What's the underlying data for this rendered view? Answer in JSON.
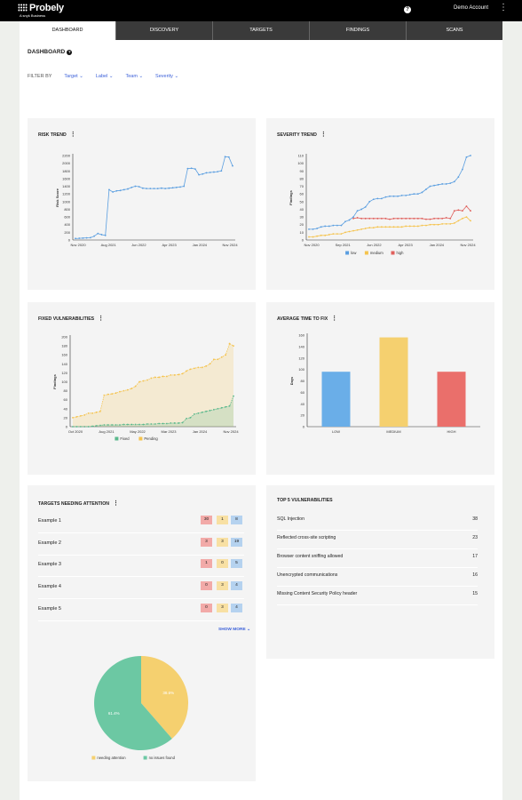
{
  "header": {
    "brand": "Probely",
    "brand_sub": "A snyk Business",
    "help": "?",
    "account": "Demo Account",
    "menu": "⋮",
    "tabs": [
      {
        "label": "DASHBOARD",
        "active": true
      },
      {
        "label": "DISCOVERY",
        "active": false
      },
      {
        "label": "TARGETS",
        "active": false
      },
      {
        "label": "FINDINGS",
        "active": false
      },
      {
        "label": "SCANS",
        "active": false
      }
    ]
  },
  "page": {
    "title": "DASHBOARD",
    "filter_label": "FILTER BY",
    "filters": [
      "Target",
      "Label",
      "Team",
      "Severity"
    ]
  },
  "risk_trend": {
    "title": "RISK TREND",
    "chart_data": {
      "type": "line",
      "ylabel": "Risk Score",
      "ylim": [
        0,
        2200
      ],
      "yticks": [
        0,
        200,
        400,
        600,
        800,
        1000,
        1200,
        1400,
        1600,
        1800,
        2000,
        2200
      ],
      "xticks": [
        "Nov 2020",
        "Aug 2021",
        "Jun 2022",
        "Apr 2023",
        "Jan 2024",
        "Nov 2024"
      ],
      "series": [
        {
          "color": "#5a9ee0",
          "values": [
            40,
            45,
            50,
            55,
            60,
            100,
            170,
            140,
            120,
            1310,
            1250,
            1280,
            1290,
            1310,
            1330,
            1370,
            1400,
            1390,
            1350,
            1340,
            1340,
            1340,
            1340,
            1350,
            1340,
            1350,
            1360,
            1370,
            1380,
            1400,
            1860,
            1870,
            1850,
            1700,
            1720,
            1750,
            1760,
            1770,
            1780,
            1800,
            2170,
            2160,
            1930
          ]
        }
      ]
    }
  },
  "severity_trend": {
    "title": "SEVERITY TREND",
    "chart_data": {
      "type": "line",
      "ylabel": "Findings",
      "ylim": [
        0,
        110
      ],
      "yticks": [
        0,
        10,
        20,
        30,
        40,
        50,
        60,
        70,
        80,
        90,
        100,
        110
      ],
      "xticks": [
        "Nov 2020",
        "Sep 2021",
        "Jun 2022",
        "Apr 2023",
        "Jan 2024",
        "Nov 2024"
      ],
      "series": [
        {
          "name": "low",
          "color": "#5a9ee0",
          "values": [
            14,
            14,
            15,
            17,
            18,
            18,
            19,
            19,
            19,
            24,
            26,
            30,
            38,
            40,
            43,
            50,
            53,
            54,
            54,
            56,
            57,
            57,
            57,
            58,
            58,
            59,
            60,
            60,
            62,
            66,
            70,
            71,
            72,
            73,
            73,
            74,
            76,
            82,
            92,
            108,
            110
          ]
        },
        {
          "name": "medium",
          "color": "#f5c34d",
          "values": [
            4,
            4,
            5,
            6,
            6,
            7,
            8,
            8,
            8,
            10,
            11,
            12,
            13,
            14,
            15,
            16,
            16,
            17,
            17,
            17,
            17,
            17,
            17,
            17,
            18,
            18,
            18,
            18,
            19,
            19,
            20,
            20,
            20,
            21,
            21,
            21,
            22,
            25,
            28,
            30,
            25
          ]
        },
        {
          "name": "high",
          "color": "#e0605c",
          "values": [
            null,
            null,
            null,
            null,
            null,
            null,
            null,
            null,
            null,
            null,
            null,
            28,
            29,
            28,
            28,
            28,
            28,
            28,
            28,
            28,
            27,
            28,
            28,
            28,
            28,
            28,
            28,
            28,
            28,
            27,
            27,
            28,
            28,
            28,
            29,
            28,
            38,
            39,
            38,
            44,
            38
          ]
        }
      ],
      "legend": "bottom"
    }
  },
  "fixed_vulns": {
    "title": "FIXED VULNERABILITIES",
    "chart_data": {
      "type": "area",
      "ylabel": "Findings",
      "ylim": [
        0,
        200
      ],
      "yticks": [
        0,
        20,
        40,
        60,
        80,
        100,
        120,
        140,
        160,
        180,
        200
      ],
      "xticks": [
        "Oct 2020",
        "Aug 2021",
        "May 2022",
        "Mar 2023",
        "Jan 2024",
        "Nov 2024"
      ],
      "series": [
        {
          "name": "Fixed",
          "color": "#5ab88c",
          "values": [
            0,
            0,
            0,
            0,
            0,
            1,
            2,
            3,
            4,
            4,
            4,
            4,
            4,
            5,
            5,
            5,
            5,
            5,
            5,
            6,
            6,
            6,
            7,
            7,
            7,
            8,
            8,
            8,
            9,
            18,
            20,
            28,
            30,
            32,
            34,
            36,
            38,
            40,
            42,
            44,
            46,
            68
          ]
        },
        {
          "name": "Pending",
          "color": "#f5c34d",
          "values": [
            20,
            22,
            24,
            26,
            30,
            30,
            32,
            34,
            70,
            72,
            73,
            75,
            78,
            80,
            82,
            85,
            90,
            100,
            102,
            104,
            108,
            110,
            110,
            112,
            112,
            115,
            115,
            116,
            118,
            124,
            128,
            130,
            132,
            132,
            135,
            140,
            150,
            150,
            155,
            160,
            185,
            180
          ]
        }
      ],
      "legend": "bottom"
    }
  },
  "avg_time": {
    "title": "AVERAGE TIME TO FIX",
    "chart_data": {
      "type": "bar",
      "ylabel": "Days",
      "ylim": [
        0,
        160
      ],
      "yticks": [
        0,
        20,
        40,
        60,
        80,
        100,
        120,
        140,
        160
      ],
      "categories": [
        "LOW",
        "MEDIUM",
        "HIGH"
      ],
      "values": [
        96,
        156,
        96
      ],
      "colors": [
        "#6aaee8",
        "#f5d06f",
        "#ea6f6b"
      ]
    }
  },
  "targets_attention": {
    "title": "TARGETS NEEDING ATTENTION",
    "rows": [
      {
        "name": "Example 1",
        "high": "30",
        "medium": "1",
        "low": "8"
      },
      {
        "name": "Example 2",
        "high": "3",
        "medium": "3",
        "low": "19"
      },
      {
        "name": "Example 3",
        "high": "1",
        "medium": "0",
        "low": "5"
      },
      {
        "name": "Example 4",
        "high": "0",
        "medium": "3",
        "low": "4"
      },
      {
        "name": "Example 5",
        "high": "0",
        "medium": "3",
        "low": "4"
      }
    ],
    "show_more": "SHOW MORE ⌄",
    "chart_data": {
      "type": "pie",
      "slices": [
        {
          "label": "needing attention",
          "value": 38.6,
          "color": "#f5d06f",
          "text": "38.6%"
        },
        {
          "label": "no issues found",
          "value": 61.4,
          "color": "#6cc8a3",
          "text": "61.4%"
        }
      ],
      "legend": "bottom"
    }
  },
  "top5": {
    "title": "TOP 5 VULNERABILITIES",
    "rows": [
      {
        "name": "SQL Injection",
        "count": "38"
      },
      {
        "name": "Reflected cross-site scripting",
        "count": "23"
      },
      {
        "name": "Browser content sniffing allowed",
        "count": "17"
      },
      {
        "name": "Unencrypted communications",
        "count": "16"
      },
      {
        "name": "Missing Content Security Policy header",
        "count": "15"
      }
    ]
  }
}
